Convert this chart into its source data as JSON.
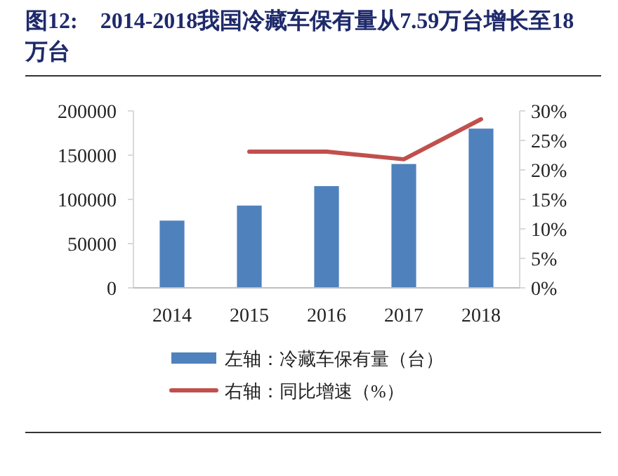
{
  "chart_data": {
    "type": "bar",
    "title": "图12:    2014-2018我国冷藏车保有量从7.59万台增长至18万台",
    "categories": [
      "2014",
      "2015",
      "2016",
      "2017",
      "2018"
    ],
    "series": [
      {
        "name": "左轴：冷藏车保有量（台）",
        "color": "#4f81bd",
        "values": [
          76000,
          93000,
          115000,
          140000,
          180000
        ]
      },
      {
        "name": "右轴：同比增速（%）",
        "type": "line",
        "axis": "y2",
        "color": "#c0504d",
        "values": [
          null,
          23.1,
          23.1,
          21.8,
          28.6
        ]
      }
    ],
    "ylim": [
      0,
      200000
    ],
    "yticks": [
      0,
      50000,
      100000,
      150000,
      200000
    ],
    "y2lim": [
      0,
      30
    ],
    "y2ticks": [
      {
        "value": 0,
        "label": "0%"
      },
      {
        "value": 5,
        "label": "5%"
      },
      {
        "value": 10,
        "label": "10%"
      },
      {
        "value": 15,
        "label": "15%"
      },
      {
        "value": 20,
        "label": "20%"
      },
      {
        "value": 25,
        "label": "25%"
      },
      {
        "value": 30,
        "label": "30%"
      }
    ],
    "legend": "bottom",
    "grid": false
  }
}
